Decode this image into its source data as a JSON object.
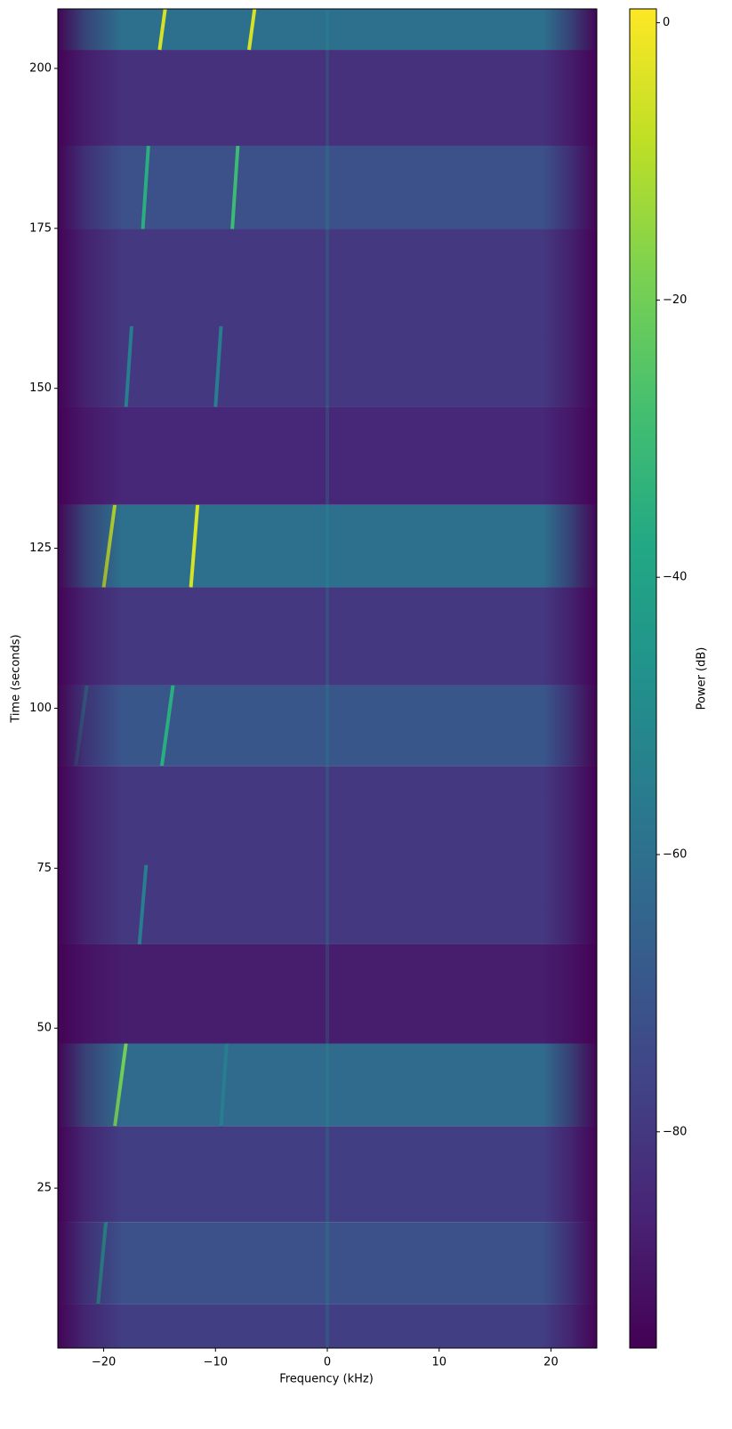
{
  "chart_data": {
    "type": "spectrogram",
    "x_label": "Frequency (kHz)",
    "y_label": "Time (seconds)",
    "colorbar_label": "Power (dB)",
    "colormap": "viridis",
    "xlim": [
      -24.1,
      24.1
    ],
    "xticks": [
      {
        "value": -20,
        "label": "−20"
      },
      {
        "value": -10,
        "label": "−10"
      },
      0,
      10,
      20
    ],
    "ylim": [
      0,
      209.3
    ],
    "yticks": [
      25,
      50,
      75,
      100,
      125,
      150,
      175,
      200
    ],
    "clim": [
      -95.6,
      1.0
    ],
    "cticks": [
      0,
      {
        "value": -20,
        "label": "−20"
      },
      {
        "value": -40,
        "label": "−40"
      },
      {
        "value": -60,
        "label": "−60"
      },
      {
        "value": -80,
        "label": "−80"
      }
    ],
    "segments": [
      {
        "start": 0,
        "end": 6.9,
        "level": -78,
        "signals": []
      },
      {
        "start": 6.9,
        "end": 19.7,
        "level": -72,
        "signals": [
          {
            "f_start": -20.5,
            "f_end": -19.8,
            "t_start": 6.9,
            "t_end": 19.7,
            "power": -45
          }
        ]
      },
      {
        "start": 19.7,
        "end": 34.7,
        "level": -78,
        "signals": []
      },
      {
        "start": 34.7,
        "end": 47.6,
        "level": -62,
        "signals": [
          {
            "f_start": -19,
            "f_end": -18,
            "t_start": 34.7,
            "t_end": 47.6,
            "power": -20
          },
          {
            "f_start": -9.5,
            "f_end": -9,
            "t_start": 34.7,
            "t_end": 47.6,
            "power": -55
          }
        ]
      },
      {
        "start": 47.6,
        "end": 63.1,
        "level": -88,
        "signals": []
      },
      {
        "start": 63.1,
        "end": 91,
        "level": -80,
        "signals": [
          {
            "f_start": -16.8,
            "f_end": -16.2,
            "t_start": 63.1,
            "t_end": 75.5,
            "power": -55
          }
        ]
      },
      {
        "start": 91,
        "end": 103.6,
        "level": -70,
        "signals": [
          {
            "f_start": -22.5,
            "f_end": -21.5,
            "t_start": 91,
            "t_end": 103.6,
            "power": -50
          },
          {
            "f_start": -14.8,
            "f_end": -13.8,
            "t_start": 91,
            "t_end": 103.6,
            "power": -35
          }
        ]
      },
      {
        "start": 103.6,
        "end": 118.9,
        "level": -80,
        "signals": []
      },
      {
        "start": 118.9,
        "end": 131.8,
        "level": -60,
        "signals": [
          {
            "f_start": -20,
            "f_end": -19,
            "t_start": 118.9,
            "t_end": 131.8,
            "power": -10
          },
          {
            "f_start": -12.2,
            "f_end": -11.6,
            "t_start": 118.9,
            "t_end": 131.8,
            "power": -5
          }
        ]
      },
      {
        "start": 131.8,
        "end": 147.1,
        "level": -85,
        "signals": []
      },
      {
        "start": 147.1,
        "end": 174.9,
        "level": -80,
        "signals": [
          {
            "f_start": -18,
            "f_end": -17.5,
            "t_start": 147.1,
            "t_end": 159.7,
            "power": -55
          },
          {
            "f_start": -10,
            "f_end": -9.5,
            "t_start": 147.1,
            "t_end": 159.7,
            "power": -55
          }
        ]
      },
      {
        "start": 174.9,
        "end": 187.9,
        "level": -72,
        "signals": [
          {
            "f_start": -16.5,
            "f_end": -16,
            "t_start": 174.9,
            "t_end": 187.9,
            "power": -35
          },
          {
            "f_start": -8.5,
            "f_end": -8,
            "t_start": 174.9,
            "t_end": 187.9,
            "power": -30
          }
        ]
      },
      {
        "start": 187.9,
        "end": 202.9,
        "level": -82,
        "signals": []
      },
      {
        "start": 202.9,
        "end": 209.3,
        "level": -60,
        "signals": [
          {
            "f_start": -15,
            "f_end": -14.5,
            "t_start": 202.9,
            "t_end": 209.3,
            "power": -5
          },
          {
            "f_start": -7,
            "f_end": -6.5,
            "t_start": 202.9,
            "t_end": 209.3,
            "power": -5
          }
        ]
      }
    ]
  }
}
